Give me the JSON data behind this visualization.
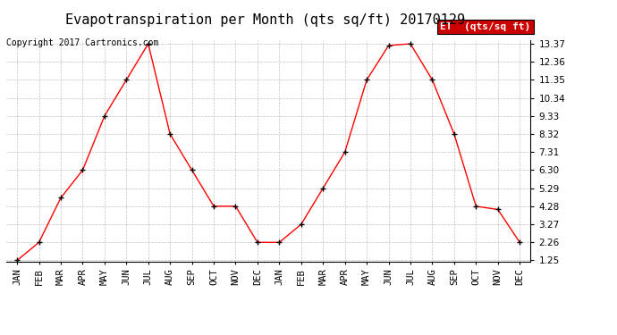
{
  "title": "Evapotranspiration per Month (qts sq/ft) 20170129",
  "copyright": "Copyright 2017 Cartronics.com",
  "legend_label": "ET  (qts/sq ft)",
  "x_labels": [
    "JAN",
    "FEB",
    "MAR",
    "APR",
    "MAY",
    "JUN",
    "JUL",
    "AUG",
    "SEP",
    "OCT",
    "NOV",
    "DEC",
    "JAN",
    "FEB",
    "MAR",
    "APR",
    "MAY",
    "JUN",
    "JUL",
    "AUG",
    "SEP",
    "OCT",
    "NOV",
    "DEC"
  ],
  "y_values": [
    1.25,
    2.26,
    4.75,
    6.3,
    9.33,
    11.35,
    13.37,
    8.32,
    6.3,
    4.28,
    4.28,
    2.26,
    2.26,
    3.27,
    5.29,
    7.31,
    11.35,
    13.27,
    13.37,
    11.35,
    8.32,
    4.28,
    4.1,
    2.26
  ],
  "ylim_min": 1.25,
  "ylim_max": 13.37,
  "yticks": [
    1.25,
    2.26,
    3.27,
    4.28,
    5.29,
    6.3,
    7.31,
    8.32,
    9.33,
    10.34,
    11.35,
    12.36,
    13.37
  ],
  "line_color": "red",
  "marker_color": "black",
  "bg_color": "#ffffff",
  "grid_color": "#bbbbbb",
  "legend_bg": "#cc0000",
  "legend_text_color": "#ffffff",
  "title_fontsize": 11,
  "copyright_fontsize": 7,
  "tick_fontsize": 7.5,
  "legend_fontsize": 8
}
